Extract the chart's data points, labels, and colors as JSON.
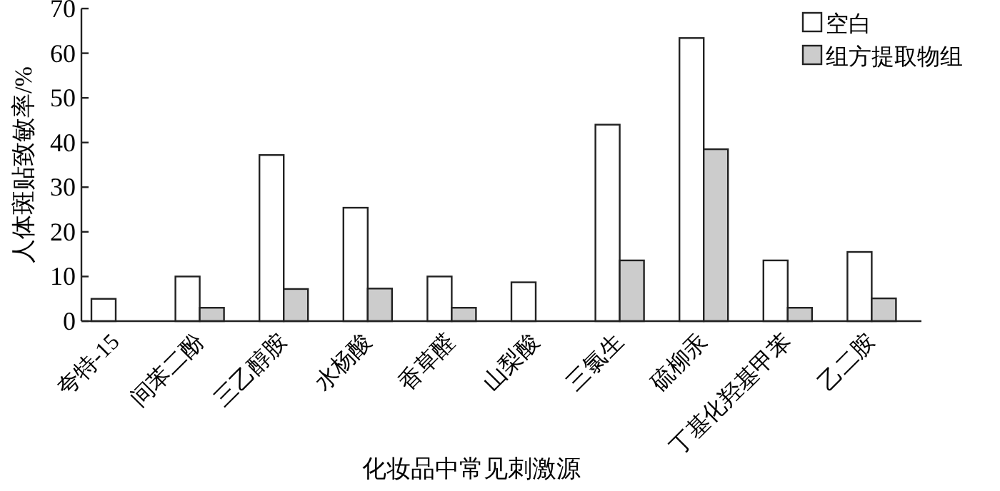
{
  "chart_data": {
    "type": "bar",
    "xlabel": "化妆品中常见刺激源",
    "ylabel": "人体斑贴致敏率/%",
    "categories": [
      "夸特-15",
      "间苯二酚",
      "三乙醇胺",
      "水杨酸",
      "香草醛",
      "山梨酸",
      "三氯生",
      "硫柳汞",
      "丁基化羟基甲苯",
      "乙二胺"
    ],
    "series": [
      {
        "name": "空白",
        "color": "#ffffff",
        "values": [
          5,
          10,
          37.2,
          25.4,
          10,
          8.7,
          44,
          63.4,
          13.6,
          15.5
        ]
      },
      {
        "name": "组方提取物组",
        "color": "#cccccc",
        "values": [
          null,
          3,
          7.2,
          7.3,
          3,
          null,
          13.6,
          38.5,
          3,
          5.1
        ]
      }
    ],
    "ylim": [
      0,
      70
    ],
    "yticks": [
      0,
      10,
      20,
      30,
      40,
      50,
      60,
      70
    ],
    "grid": false,
    "legend": "top right"
  }
}
